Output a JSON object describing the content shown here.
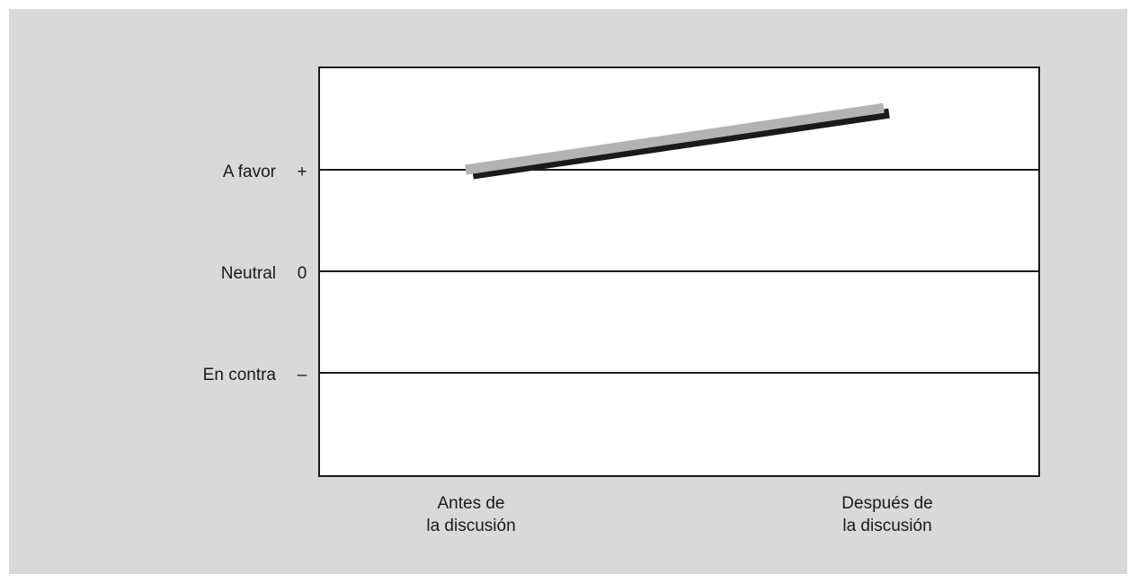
{
  "chart_data": {
    "type": "line",
    "title": "",
    "xlabel": "",
    "ylabel": "",
    "categories": [
      [
        "Antes de",
        "la discusión"
      ],
      [
        "Después de",
        "la discusión"
      ]
    ],
    "y_levels": [
      {
        "name": "A favor",
        "symbol": "+",
        "value": 1
      },
      {
        "name": "Neutral",
        "symbol": "0",
        "value": 0
      },
      {
        "name": "En contra",
        "symbol": "–",
        "value": -1
      }
    ],
    "ylim": [
      -1.98,
      1.0
    ],
    "series": [
      {
        "values": [
          1.0,
          1.6
        ],
        "color": "#b3b3b3",
        "shadow_color": "#1a1a1a"
      }
    ],
    "grid": true
  }
}
